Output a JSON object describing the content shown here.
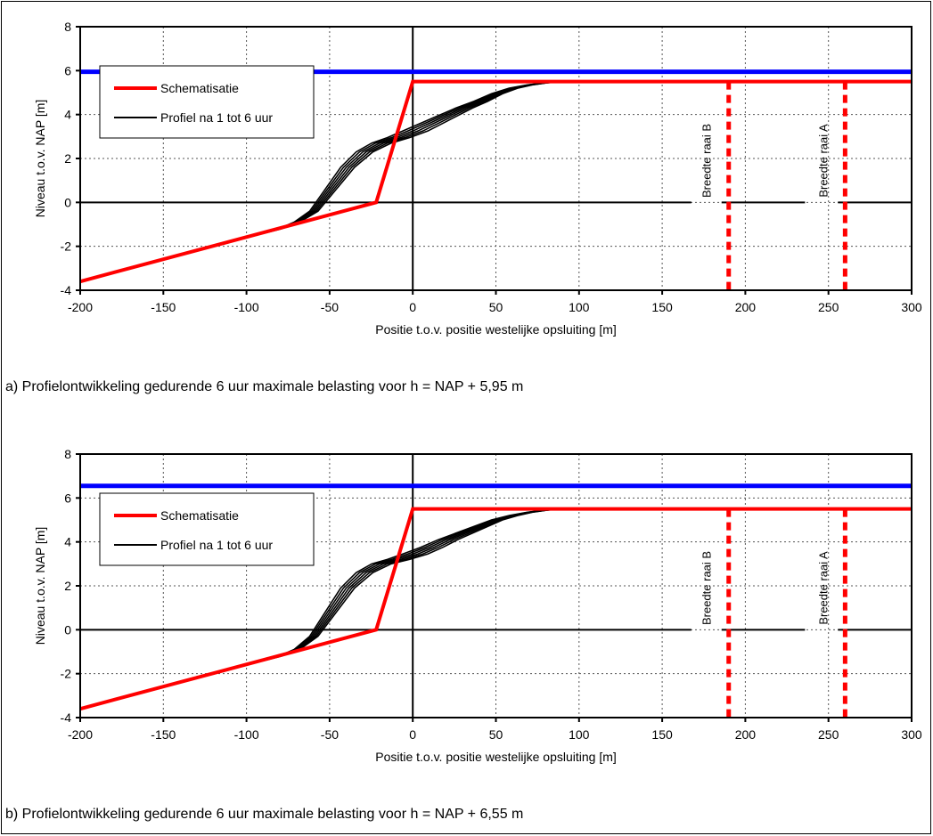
{
  "chart_data": [
    {
      "type": "line",
      "caption": "a) Profielontwikkeling gedurende 6 uur maximale belasting voor h = NAP + 5,95 m",
      "xlabel": "Positie t.o.v. positie westelijke opsluiting [m]",
      "ylabel": "Niveau t.o.v. NAP [m]",
      "xlim": [
        -200,
        300
      ],
      "ylim": [
        -4,
        8
      ],
      "xticks": [
        -200,
        -150,
        -100,
        -50,
        0,
        50,
        100,
        150,
        200,
        250,
        300
      ],
      "yticks": [
        -4,
        -2,
        0,
        2,
        4,
        6,
        8
      ],
      "grid": true,
      "legend_position": "top-left",
      "water_level": 5.95,
      "colors": {
        "water": "#0000ff",
        "schematisatie": "#ff0000",
        "profiel": "#000000",
        "raai": "#ff0000"
      },
      "legend": [
        {
          "label": "Schematisatie",
          "color": "#ff0000"
        },
        {
          "label": "Profiel na 1 tot 6 uur",
          "color": "#000000"
        }
      ],
      "series": [
        {
          "name": "Schematisatie",
          "x": [
            -200,
            -22,
            0,
            300
          ],
          "y": [
            -3.6,
            0,
            5.5,
            5.5
          ]
        },
        {
          "name": "Profiel na 1 tot 6 uur",
          "x": [
            -200,
            -100,
            -80,
            -70,
            -60,
            -50,
            -40,
            -30,
            -20,
            -10,
            0,
            10,
            20,
            30,
            40,
            50,
            60,
            70,
            80,
            90,
            300
          ],
          "y": [
            -3.6,
            -1.6,
            -1.2,
            -0.9,
            -0.4,
            0.6,
            1.6,
            2.3,
            2.7,
            2.95,
            3.25,
            3.6,
            3.95,
            4.3,
            4.6,
            4.95,
            5.2,
            5.35,
            5.45,
            5.5,
            5.5
          ]
        }
      ],
      "raaien": [
        {
          "label": "Breedte raai B",
          "x": 190
        },
        {
          "label": "Breedte raai A",
          "x": 260
        }
      ]
    },
    {
      "type": "line",
      "caption": "b) Profielontwikkeling gedurende 6 uur maximale belasting voor h = NAP + 6,55 m",
      "xlabel": "Positie t.o.v. positie westelijke opsluiting [m]",
      "ylabel": "Niveau t.o.v. NAP [m]",
      "xlim": [
        -200,
        300
      ],
      "ylim": [
        -4,
        8
      ],
      "xticks": [
        -200,
        -150,
        -100,
        -50,
        0,
        50,
        100,
        150,
        200,
        250,
        300
      ],
      "yticks": [
        -4,
        -2,
        0,
        2,
        4,
        6,
        8
      ],
      "grid": true,
      "legend_position": "top-left",
      "water_level": 6.55,
      "colors": {
        "water": "#0000ff",
        "schematisatie": "#ff0000",
        "profiel": "#000000",
        "raai": "#ff0000"
      },
      "legend": [
        {
          "label": "Schematisatie",
          "color": "#ff0000"
        },
        {
          "label": "Profiel na 1 tot 6 uur",
          "color": "#000000"
        }
      ],
      "series": [
        {
          "name": "Schematisatie",
          "x": [
            -200,
            -22,
            0,
            300
          ],
          "y": [
            -3.6,
            0,
            5.5,
            5.5
          ]
        },
        {
          "name": "Profiel na 1 tot 6 uur",
          "x": [
            -200,
            -100,
            -80,
            -70,
            -60,
            -50,
            -40,
            -30,
            -20,
            -10,
            0,
            10,
            20,
            30,
            40,
            50,
            60,
            70,
            80,
            90,
            300
          ],
          "y": [
            -3.6,
            -1.6,
            -1.2,
            -0.9,
            -0.3,
            0.8,
            1.9,
            2.6,
            3.0,
            3.2,
            3.45,
            3.75,
            4.1,
            4.4,
            4.7,
            5.0,
            5.2,
            5.35,
            5.45,
            5.5,
            5.5
          ]
        }
      ],
      "raaien": [
        {
          "label": "Breedte raai B",
          "x": 190
        },
        {
          "label": "Breedte raai A",
          "x": 260
        }
      ]
    }
  ]
}
